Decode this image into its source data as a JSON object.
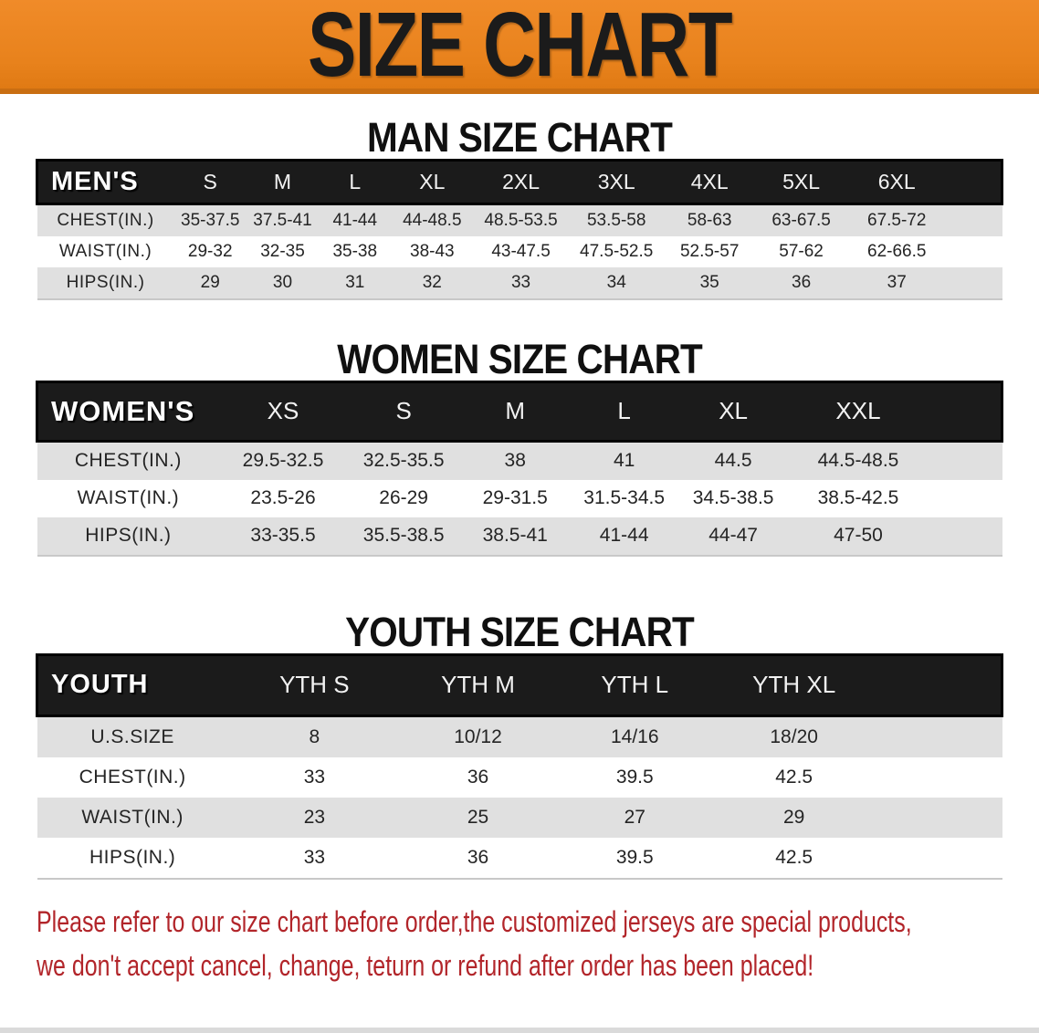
{
  "banner": {
    "title": "SIZE CHART",
    "bg_color": "#E8821C",
    "text_color": "#1B1B1B"
  },
  "colors": {
    "table_header_bg": "#1B1B1B",
    "table_header_text": "#FFFFFF",
    "row_stripe": "#E0E0E0",
    "row_plain": "#FFFFFF",
    "note_text": "#B2252A"
  },
  "sections": [
    {
      "id": "men",
      "heading": "MAN SIZE CHART",
      "table": {
        "header_label": "MEN'S",
        "columns": [
          "S",
          "M",
          "L",
          "XL",
          "2XL",
          "3XL",
          "4XL",
          "5XL",
          "6XL"
        ],
        "rows": [
          {
            "label": "CHEST(IN.)",
            "values": [
              "35-37.5",
              "37.5-41",
              "41-44",
              "44-48.5",
              "48.5-53.5",
              "53.5-58",
              "58-63",
              "63-67.5",
              "67.5-72"
            ]
          },
          {
            "label": "WAIST(IN.)",
            "values": [
              "29-32",
              "32-35",
              "35-38",
              "38-43",
              "43-47.5",
              "47.5-52.5",
              "52.5-57",
              "57-62",
              "62-66.5"
            ]
          },
          {
            "label": "HIPS(IN.)",
            "values": [
              "29",
              "30",
              "31",
              "32",
              "33",
              "34",
              "35",
              "36",
              "37"
            ]
          }
        ]
      }
    },
    {
      "id": "women",
      "heading": "WOMEN SIZE CHART",
      "table": {
        "header_label": "WOMEN'S",
        "columns": [
          "XS",
          "S",
          "M",
          "L",
          "XL",
          "XXL"
        ],
        "rows": [
          {
            "label": "CHEST(IN.)",
            "values": [
              "29.5-32.5",
              "32.5-35.5",
              "38",
              "41",
              "44.5",
              "44.5-48.5"
            ]
          },
          {
            "label": "WAIST(IN.)",
            "values": [
              "23.5-26",
              "26-29",
              "29-31.5",
              "31.5-34.5",
              "34.5-38.5",
              "38.5-42.5"
            ]
          },
          {
            "label": "HIPS(IN.)",
            "values": [
              "33-35.5",
              "35.5-38.5",
              "38.5-41",
              "41-44",
              "44-47",
              "47-50"
            ]
          }
        ]
      }
    },
    {
      "id": "youth",
      "heading": "YOUTH SIZE CHART",
      "table": {
        "header_label": "YOUTH",
        "columns": [
          "YTH S",
          "YTH M",
          "YTH L",
          "YTH XL"
        ],
        "rows": [
          {
            "label": "U.S.SIZE",
            "values": [
              "8",
              "10/12",
              "14/16",
              "18/20"
            ]
          },
          {
            "label": "CHEST(IN.)",
            "values": [
              "33",
              "36",
              "39.5",
              "42.5"
            ]
          },
          {
            "label": "WAIST(IN.)",
            "values": [
              "23",
              "25",
              "27",
              "29"
            ]
          },
          {
            "label": "HIPS(IN.)",
            "values": [
              "33",
              "36",
              "39.5",
              "42.5"
            ]
          }
        ]
      }
    }
  ],
  "footer_note": {
    "lines": [
      "Please refer to our size chart before order,the customized jerseys are special products,",
      "we don't accept cancel, change, teturn or refund after order has been placed!"
    ]
  }
}
